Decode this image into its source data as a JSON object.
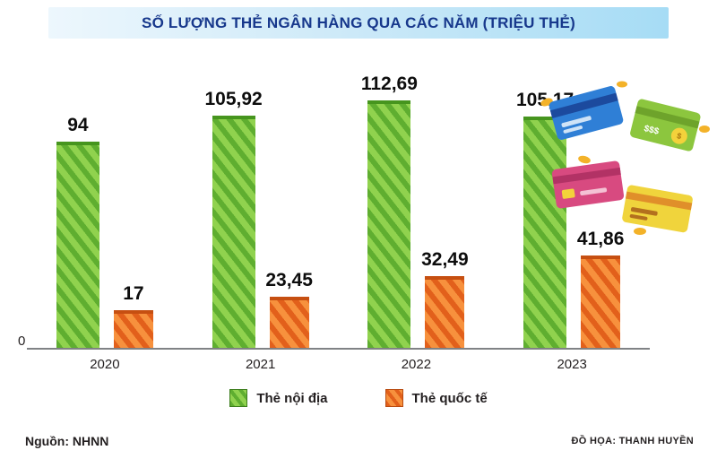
{
  "title_bar": {
    "title": "SỐ LƯỢNG THẺ NGÂN HÀNG QUA CÁC NĂM (TRIỆU THẺ)"
  },
  "chart_data": {
    "type": "bar",
    "title": "SỐ LƯỢNG THẺ NGÂN HÀNG QUA CÁC NĂM (TRIỆU THẺ)",
    "categories": [
      "2020",
      "2021",
      "2022",
      "2023"
    ],
    "series": [
      {
        "name": "Thẻ nội địa",
        "color": "#6db33f",
        "values": [
          94,
          105.92,
          112.69,
          105.17
        ],
        "value_labels": [
          "94",
          "105,92",
          "112,69",
          "105,17"
        ]
      },
      {
        "name": "Thẻ quốc tế",
        "color": "#ef6b21",
        "values": [
          17,
          23.45,
          32.49,
          41.86
        ],
        "value_labels": [
          "17",
          "23,45",
          "32,49",
          "41,86"
        ]
      }
    ],
    "ylim": [
      0,
      120
    ],
    "y_zero_label": "0",
    "grid": false,
    "legend_position": "bottom"
  },
  "footer": {
    "source": "Nguồn: NHNN",
    "credit": "ĐỒ HỌA: THANH HUYỀN"
  }
}
